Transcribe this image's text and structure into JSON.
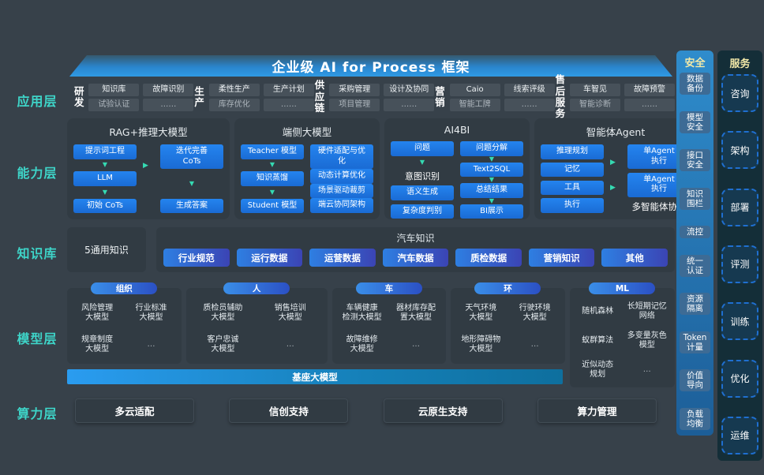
{
  "banner": {
    "title": "企业级 AI for Process 框架"
  },
  "layer_labels": {
    "app": "应用层",
    "capability": "能力层",
    "knowledge": "知识库",
    "model": "模型层",
    "compute": "算力层"
  },
  "app_layer": {
    "groups": [
      {
        "label": "研发",
        "cells": [
          [
            "知识库",
            "试验认证"
          ],
          [
            "故障识别",
            "……"
          ]
        ]
      },
      {
        "label": "生产",
        "cells": [
          [
            "柔性生产",
            "库存优化"
          ],
          [
            "生产计划",
            "……"
          ]
        ]
      },
      {
        "label": "供应\n链",
        "cells": [
          [
            "采购管理",
            "项目管理"
          ],
          [
            "设计及协同",
            "……"
          ]
        ]
      },
      {
        "label": "营销",
        "cells": [
          [
            "Caio",
            "智能工牌"
          ],
          [
            "线索评级",
            "……"
          ]
        ]
      },
      {
        "label": "售后\n服务",
        "cells": [
          [
            "车智见",
            "智能诊断"
          ],
          [
            "故障预警",
            "……"
          ]
        ]
      }
    ]
  },
  "capability": {
    "boxes": [
      {
        "title": "RAG+推理大模型",
        "columns": [
          {
            "items": [
              {
                "label": "提示词工程",
                "style": "btn",
                "arrow": true
              },
              {
                "label": "LLM",
                "style": "btn",
                "arrow": true
              },
              {
                "label": "初始 CoTs",
                "style": "btn",
                "arrow": false
              }
            ]
          },
          {
            "items": [
              {
                "label": "迭代完善\nCoTs",
                "style": "btn",
                "arrow": true
              },
              {
                "label": "生成答案",
                "style": "btn",
                "arrow": false
              }
            ]
          }
        ],
        "mid_arrows": [
          24
        ],
        "note": ""
      },
      {
        "title": "端侧大模型",
        "columns": [
          {
            "items": [
              {
                "label": "Teacher 模型",
                "style": "btn",
                "arrow": true
              },
              {
                "label": "知识蒸馏",
                "style": "btn",
                "arrow": true
              },
              {
                "label": "Student 模型",
                "style": "btn",
                "arrow": false
              }
            ]
          },
          {
            "items": [
              {
                "label": "硬件适配与优\n化",
                "style": "btn",
                "arrow": false
              },
              {
                "label": "动态计算优化",
                "style": "btn",
                "arrow": false
              },
              {
                "label": "场景驱动裁剪",
                "style": "btn",
                "arrow": false
              },
              {
                "label": "端云协同架构",
                "style": "btn",
                "arrow": false
              }
            ]
          }
        ],
        "mid_arrows": [],
        "note": ""
      },
      {
        "title": "AI4BI",
        "columns": [
          {
            "items": [
              {
                "label": "问题",
                "style": "btn",
                "arrow": true
              },
              {
                "label": "意图识别",
                "style": "txt",
                "arrow": false
              },
              {
                "label": "语义生成",
                "style": "btn",
                "arrow": false
              },
              {
                "label": "复杂度判别",
                "style": "btn",
                "arrow": false
              }
            ]
          },
          {
            "items": [
              {
                "label": "问题分解",
                "style": "btn",
                "arrow": true
              },
              {
                "label": "Text2SQL",
                "style": "btn",
                "arrow": true
              },
              {
                "label": "总结结果",
                "style": "btn",
                "arrow": true
              },
              {
                "label": "BI展示",
                "style": "btn",
                "arrow": false
              }
            ]
          }
        ],
        "mid_arrows": [],
        "note": ""
      },
      {
        "title": "智能体Agent",
        "columns": [
          {
            "items": [
              {
                "label": "推理规划",
                "style": "btn",
                "arrow": false
              },
              {
                "label": "记忆",
                "style": "btn",
                "arrow": false
              },
              {
                "label": "工具",
                "style": "btn",
                "arrow": false
              },
              {
                "label": "执行",
                "style": "btn",
                "arrow": false
              }
            ]
          },
          {
            "items": [
              {
                "label": "单Agent\n执行",
                "style": "btn",
                "arrow": false
              },
              {
                "label": "单Agent\n执行",
                "style": "btn",
                "arrow": false
              }
            ]
          }
        ],
        "mid_arrows": [
          20,
          52
        ],
        "note": "多智能体协同"
      }
    ]
  },
  "knowledge": {
    "general_label": "5通用知识",
    "auto_title": "汽车知识",
    "buttons": [
      "行业规范",
      "运行数据",
      "运营数据",
      "汽车数据",
      "质检数据",
      "营销知识",
      "其他"
    ]
  },
  "model_layer": {
    "groups": [
      {
        "pill": "组织",
        "tall": false,
        "cells": [
          "风险管理\n大模型",
          "行业标准\n大模型",
          "规章制度\n大模型",
          "…"
        ]
      },
      {
        "pill": "人",
        "tall": false,
        "cells": [
          "质检员辅助\n大模型",
          "销售培训\n大模型",
          "客户忠诚\n大模型",
          "…"
        ]
      },
      {
        "pill": "车",
        "tall": false,
        "cells": [
          "车辆健康\n检测大模型",
          "器材库存配\n置大模型",
          "故障维修\n大模型",
          "…"
        ]
      },
      {
        "pill": "环",
        "tall": false,
        "cells": [
          "天气环境\n大模型",
          "行驶环境\n大模型",
          "地形障碍物\n大模型",
          "…"
        ]
      },
      {
        "pill": "ML",
        "tall": true,
        "cells": [
          "随机森林",
          "长短期记忆\n网络",
          "蚁群算法",
          "多变量灰色\n模型",
          "近似动态\n规划",
          "…"
        ]
      }
    ],
    "base_label": "基座大模型"
  },
  "compute": {
    "buttons": [
      "多云适配",
      "信创支持",
      "云原生支持",
      "算力管理"
    ]
  },
  "security": {
    "title": "安全",
    "items": [
      "数据\n备份",
      "模型\n安全",
      "接口\n安全",
      "知识\n围栏",
      "流控",
      "统一\n认证",
      "资源\n隔离",
      "Token\n计量",
      "价值\n导向",
      "负载\n均衡"
    ]
  },
  "service": {
    "title": "服务",
    "items": [
      "咨询",
      "架构",
      "部署",
      "评测",
      "训练",
      "优化",
      "运维"
    ]
  },
  "colors": {
    "accent_cyan": "#3ed4c8",
    "button_blue": "#1e7ce4",
    "arrow_teal": "#35dab2",
    "banner_blue": "#2e93dd",
    "pill_gradient_end": "#2b50c4",
    "base_bar_start": "#2a9cf0"
  }
}
